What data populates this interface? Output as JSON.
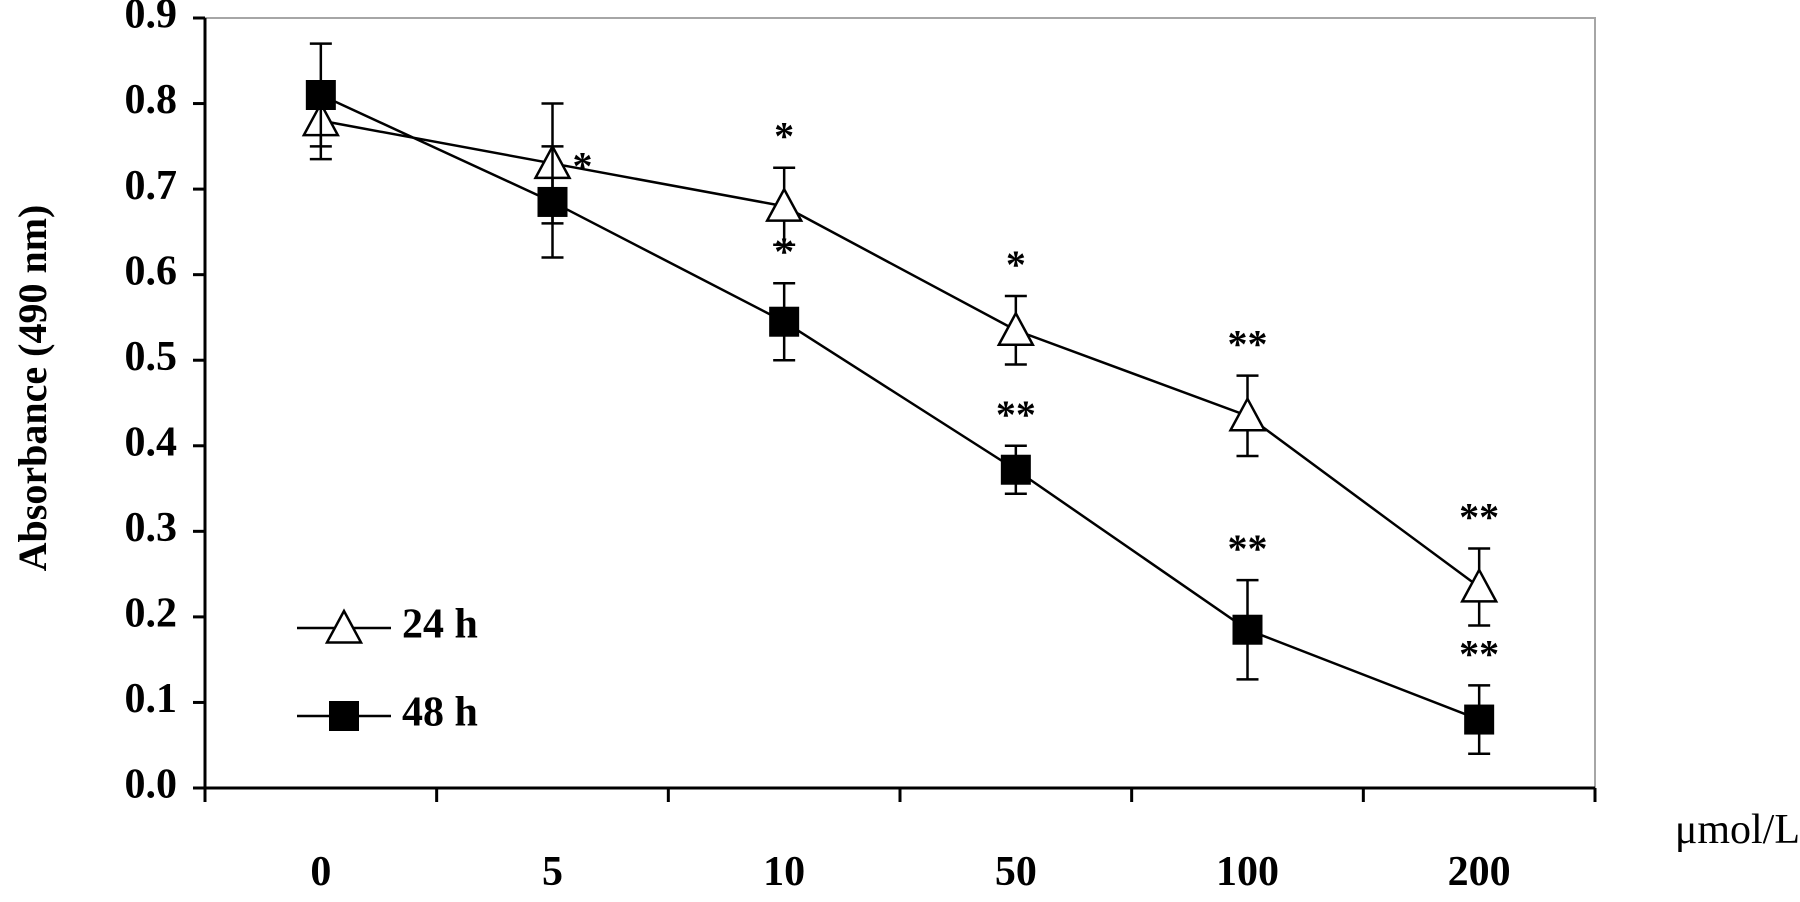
{
  "chart_data": {
    "type": "line",
    "title": "",
    "xlabel": "μmol/L",
    "ylabel": "Absorbance (490 nm)",
    "ylim": [
      0.0,
      0.9
    ],
    "yticks": [
      "0.0",
      "0.1",
      "0.2",
      "0.3",
      "0.4",
      "0.5",
      "0.6",
      "0.7",
      "0.8",
      "0.9"
    ],
    "categories": [
      "0",
      "5",
      "10",
      "50",
      "100",
      "200"
    ],
    "grid": false,
    "legend_position": "bottom-left",
    "series": [
      {
        "name": "24 h",
        "marker": "open-triangle",
        "values": [
          0.78,
          0.73,
          0.68,
          0.535,
          0.435,
          0.235
        ],
        "errors": [
          0.045,
          0.07,
          0.045,
          0.04,
          0.047,
          0.045
        ],
        "significance": [
          "",
          "*",
          "*",
          "*",
          "**",
          "**"
        ]
      },
      {
        "name": "48 h",
        "marker": "filled-square",
        "values": [
          0.81,
          0.685,
          0.545,
          0.372,
          0.185,
          0.08
        ],
        "errors": [
          0.06,
          0.065,
          0.045,
          0.028,
          0.058,
          0.04
        ],
        "significance": [
          "",
          "",
          "*",
          "**",
          "**",
          "**"
        ]
      }
    ]
  }
}
